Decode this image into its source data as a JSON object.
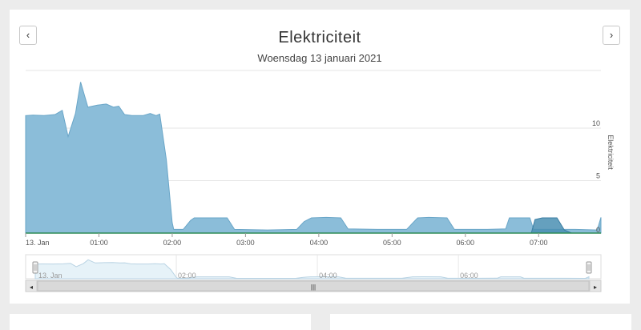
{
  "header": {
    "title": "Elektriciteit",
    "subtitle": "Woensdag 13 januari 2021",
    "prev_icon": "chevron-left-icon",
    "next_icon": "chevron-right-icon",
    "prev_symbol": "‹",
    "next_symbol": "›"
  },
  "scrollbar": {
    "left_arrow": "◂",
    "right_arrow": "▸",
    "thumb_grip": "|||"
  },
  "colors": {
    "area_fill": "#8bbdd9",
    "area_line": "#6aa6c8",
    "navigator_fill": "#e6f2f8",
    "navigator_line": "#b9d3e3",
    "grid": "#e6e6e6",
    "baseline": "#2e8b57",
    "second_series": "#4a8fb3"
  },
  "chart_data": {
    "type": "area",
    "ylabel": "Elektriciteit",
    "y_ticks": [
      "5",
      "10"
    ],
    "ylim": [
      0,
      15.5
    ],
    "x_ticks": [
      {
        "t": 0,
        "label": "13. Jan"
      },
      {
        "t": 1,
        "label": "01:00"
      },
      {
        "t": 2,
        "label": "02:00"
      },
      {
        "t": 3,
        "label": "03:00"
      },
      {
        "t": 4,
        "label": "04:00"
      },
      {
        "t": 5,
        "label": "05:00"
      },
      {
        "t": 6,
        "label": "06:00"
      },
      {
        "t": 7,
        "label": "07:00"
      }
    ],
    "x_range": [
      0,
      7.85
    ],
    "series": [
      {
        "points": [
          [
            0,
            11.2
          ],
          [
            0.1,
            11.25
          ],
          [
            0.25,
            11.2
          ],
          [
            0.4,
            11.3
          ],
          [
            0.5,
            11.7
          ],
          [
            0.58,
            9.2
          ],
          [
            0.68,
            11.4
          ],
          [
            0.75,
            14.4
          ],
          [
            0.85,
            12.0
          ],
          [
            0.98,
            12.2
          ],
          [
            1.1,
            12.3
          ],
          [
            1.2,
            12.0
          ],
          [
            1.27,
            12.1
          ],
          [
            1.35,
            11.3
          ],
          [
            1.45,
            11.2
          ],
          [
            1.6,
            11.2
          ],
          [
            1.7,
            11.4
          ],
          [
            1.78,
            11.2
          ],
          [
            1.83,
            11.35
          ],
          [
            1.92,
            7.0
          ],
          [
            2.0,
            1.0
          ],
          [
            2.02,
            0.35
          ],
          [
            2.15,
            0.35
          ],
          [
            2.25,
            1.2
          ],
          [
            2.3,
            1.45
          ],
          [
            2.55,
            1.45
          ],
          [
            2.75,
            1.45
          ],
          [
            2.85,
            0.35
          ],
          [
            3.3,
            0.3
          ],
          [
            3.7,
            0.35
          ],
          [
            3.8,
            1.1
          ],
          [
            3.9,
            1.45
          ],
          [
            4.1,
            1.5
          ],
          [
            4.3,
            1.45
          ],
          [
            4.4,
            0.4
          ],
          [
            4.8,
            0.35
          ],
          [
            5.2,
            0.35
          ],
          [
            5.3,
            1.1
          ],
          [
            5.35,
            1.45
          ],
          [
            5.5,
            1.5
          ],
          [
            5.75,
            1.45
          ],
          [
            5.85,
            0.35
          ],
          [
            6.3,
            0.35
          ],
          [
            6.55,
            0.4
          ],
          [
            6.6,
            1.45
          ],
          [
            6.88,
            1.45
          ],
          [
            6.93,
            0.35
          ],
          [
            7.5,
            0.35
          ],
          [
            7.8,
            0.3
          ],
          [
            7.85,
            1.5
          ]
        ]
      },
      {
        "points": [
          [
            6.9,
            0
          ],
          [
            6.95,
            1.3
          ],
          [
            7.05,
            1.45
          ],
          [
            7.25,
            1.45
          ],
          [
            7.35,
            0.3
          ],
          [
            7.45,
            0
          ]
        ]
      }
    ]
  }
}
